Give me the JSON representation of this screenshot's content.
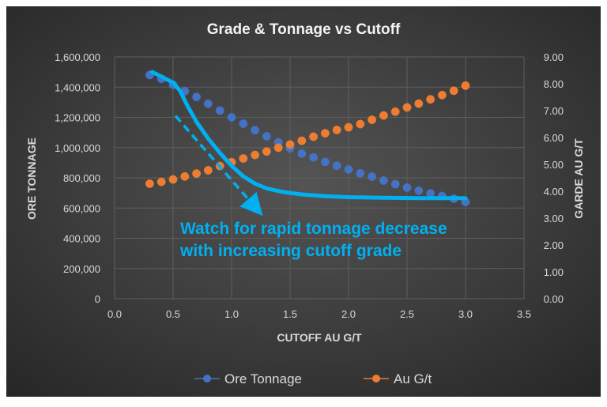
{
  "chart_data": {
    "type": "scatter",
    "title": "Grade & Tonnage vs Cutoff",
    "xlabel": "CUTOFF AU G/T",
    "ylabel": "ORE TONNAGE",
    "y2label": "GARDE AU G/T",
    "xlim": [
      0,
      3.5
    ],
    "ylim": [
      0,
      1600000
    ],
    "y2lim": [
      0,
      9
    ],
    "x_ticks": [
      "0.0",
      "0.5",
      "1.0",
      "1.5",
      "2.0",
      "2.5",
      "3.0",
      "3.5"
    ],
    "y_ticks": [
      "0",
      "200,000",
      "400,000",
      "600,000",
      "800,000",
      "1,000,000",
      "1,200,000",
      "1,400,000",
      "1,600,000"
    ],
    "y2_ticks": [
      "0.00",
      "1.00",
      "2.00",
      "3.00",
      "4.00",
      "5.00",
      "6.00",
      "7.00",
      "8.00",
      "9.00"
    ],
    "grid": true,
    "legend_position": "bottom",
    "x": [
      0.3,
      0.4,
      0.5,
      0.6,
      0.7,
      0.8,
      0.9,
      1.0,
      1.1,
      1.2,
      1.3,
      1.4,
      1.5,
      1.6,
      1.7,
      1.8,
      1.9,
      2.0,
      2.1,
      2.2,
      2.3,
      2.4,
      2.5,
      2.6,
      2.7,
      2.8,
      2.9,
      3.0
    ],
    "series": [
      {
        "name": "Ore Tonnage",
        "axis": "left",
        "color": "#4472c4",
        "values": [
          1480000,
          1455000,
          1415000,
          1373000,
          1335000,
          1290000,
          1245000,
          1200000,
          1158000,
          1115000,
          1075000,
          1035000,
          995000,
          960000,
          935000,
          905000,
          880000,
          855000,
          830000,
          808000,
          782000,
          758000,
          735000,
          715000,
          697000,
          680000,
          662000,
          640000
        ]
      },
      {
        "name": "Au G/t",
        "axis": "right",
        "color": "#ed7d31",
        "values": [
          4.28,
          4.35,
          4.44,
          4.55,
          4.66,
          4.78,
          4.94,
          5.08,
          5.22,
          5.35,
          5.48,
          5.62,
          5.74,
          5.88,
          6.03,
          6.16,
          6.28,
          6.38,
          6.5,
          6.66,
          6.82,
          6.96,
          7.12,
          7.26,
          7.42,
          7.58,
          7.74,
          7.93
        ]
      }
    ],
    "annotation": {
      "lines": [
        "Watch for rapid tonnage decrease",
        "with increasing cutoff grade"
      ],
      "color": "#00b0f0",
      "trend_curve": {
        "x": [
          0.32,
          0.4,
          0.5,
          0.56,
          0.62,
          0.7,
          0.8,
          0.9,
          1.0,
          1.1,
          1.2,
          1.3,
          1.45,
          1.6,
          1.8,
          2.0,
          2.3,
          2.6,
          3.0
        ],
        "y": [
          1500000,
          1470000,
          1430000,
          1375000,
          1280000,
          1170000,
          1060000,
          965000,
          880000,
          810000,
          762000,
          730000,
          705000,
          690000,
          678000,
          672000,
          668000,
          665000,
          665000
        ]
      },
      "arrow": {
        "x": [
          0.52,
          1.22
        ],
        "y": [
          1210000,
          590000
        ]
      }
    }
  }
}
